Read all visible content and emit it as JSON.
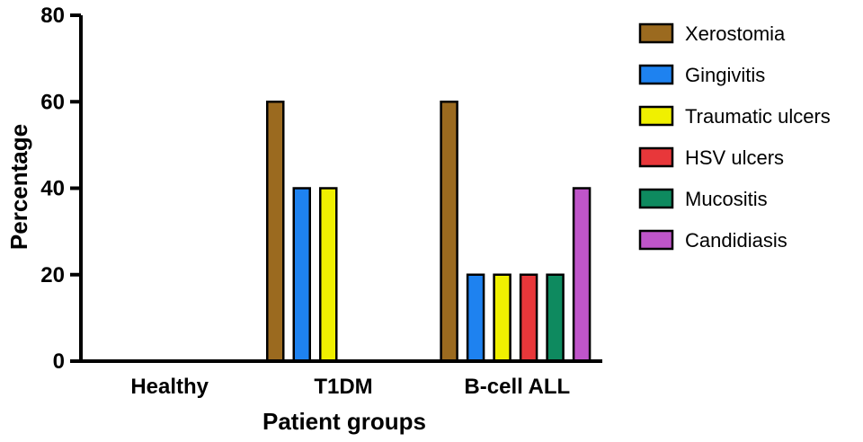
{
  "chart_data": {
    "type": "bar",
    "title": "",
    "xlabel": "Patient groups",
    "ylabel": "Percentage",
    "ylim": [
      0,
      80
    ],
    "yticks": [
      0,
      20,
      40,
      60,
      80
    ],
    "grid": false,
    "legend_position": "right",
    "categories": [
      "Healthy",
      "T1DM",
      "B-cell ALL"
    ],
    "series": [
      {
        "name": "Xerostomia",
        "color": "#9B6A1F",
        "values": [
          0,
          60,
          60
        ]
      },
      {
        "name": "Gingivitis",
        "color": "#1E82F0",
        "values": [
          0,
          40,
          20
        ]
      },
      {
        "name": "Traumatic ulcers",
        "color": "#F0F000",
        "values": [
          0,
          40,
          20
        ]
      },
      {
        "name": "HSV ulcers",
        "color": "#E8373A",
        "values": [
          0,
          0,
          20
        ]
      },
      {
        "name": "Mucositis",
        "color": "#0E8A5F",
        "values": [
          0,
          0,
          20
        ]
      },
      {
        "name": "Candidiasis",
        "color": "#BF55C9",
        "values": [
          0,
          0,
          40
        ]
      }
    ]
  }
}
